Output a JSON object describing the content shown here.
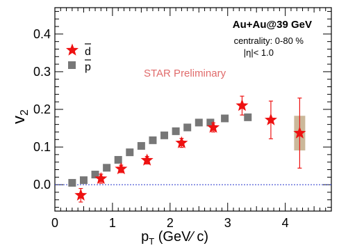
{
  "chart_data": {
    "type": "scatter",
    "xlabel_main": "p",
    "xlabel_sub": "T",
    "xlabel_rest": " (GeV⁄ c)",
    "ylabel_main": "v",
    "ylabel_sub": "2",
    "xlim": [
      0,
      4.8
    ],
    "ylim": [
      -0.07,
      0.47
    ],
    "x_ticks": [
      0,
      1,
      2,
      3,
      4
    ],
    "y_ticks": [
      0.0,
      0.1,
      0.2,
      0.3,
      0.4
    ],
    "x_tick_labels": [
      "0",
      "1",
      "2",
      "3",
      "4"
    ],
    "y_tick_labels": [
      "0.0",
      "0.1",
      "0.2",
      "0.3",
      "0.4"
    ],
    "reference_line_y": 0,
    "annotations": {
      "system": "Au+Au@39 GeV",
      "centrality": "centrality: 0-80 %",
      "eta": "|η|< 1.0",
      "preliminary": "STAR Preliminary"
    },
    "series": [
      {
        "name": "d",
        "marker": "star",
        "color": "#ee1111",
        "points": [
          {
            "x": 0.45,
            "y": -0.028,
            "err": 0.018,
            "sys": 0.0
          },
          {
            "x": 0.8,
            "y": 0.016,
            "err": 0.012,
            "sys": 0.0
          },
          {
            "x": 1.15,
            "y": 0.042,
            "err": 0.01,
            "sys": 0.0
          },
          {
            "x": 1.6,
            "y": 0.065,
            "err": 0.01,
            "sys": 0.0
          },
          {
            "x": 2.2,
            "y": 0.111,
            "err": 0.012,
            "sys": 0.0
          },
          {
            "x": 2.75,
            "y": 0.152,
            "err": 0.012,
            "sys": 0.0
          },
          {
            "x": 3.25,
            "y": 0.21,
            "err": 0.025,
            "sys": 0.0
          },
          {
            "x": 3.75,
            "y": 0.172,
            "err": 0.05,
            "sys": 0.0
          },
          {
            "x": 4.25,
            "y": 0.137,
            "err": 0.093,
            "sys": 0.046
          }
        ]
      },
      {
        "name": "p",
        "marker": "square",
        "color": "#777777",
        "points": [
          {
            "x": 0.3,
            "y": 0.005
          },
          {
            "x": 0.5,
            "y": 0.012
          },
          {
            "x": 0.7,
            "y": 0.027
          },
          {
            "x": 0.9,
            "y": 0.045
          },
          {
            "x": 1.1,
            "y": 0.066
          },
          {
            "x": 1.3,
            "y": 0.086
          },
          {
            "x": 1.5,
            "y": 0.103
          },
          {
            "x": 1.7,
            "y": 0.118
          },
          {
            "x": 1.9,
            "y": 0.131
          },
          {
            "x": 2.1,
            "y": 0.142
          },
          {
            "x": 2.3,
            "y": 0.152
          },
          {
            "x": 2.5,
            "y": 0.165
          },
          {
            "x": 2.7,
            "y": 0.165
          },
          {
            "x": 2.95,
            "y": 0.176
          },
          {
            "x": 3.35,
            "y": 0.179
          }
        ]
      }
    ]
  }
}
